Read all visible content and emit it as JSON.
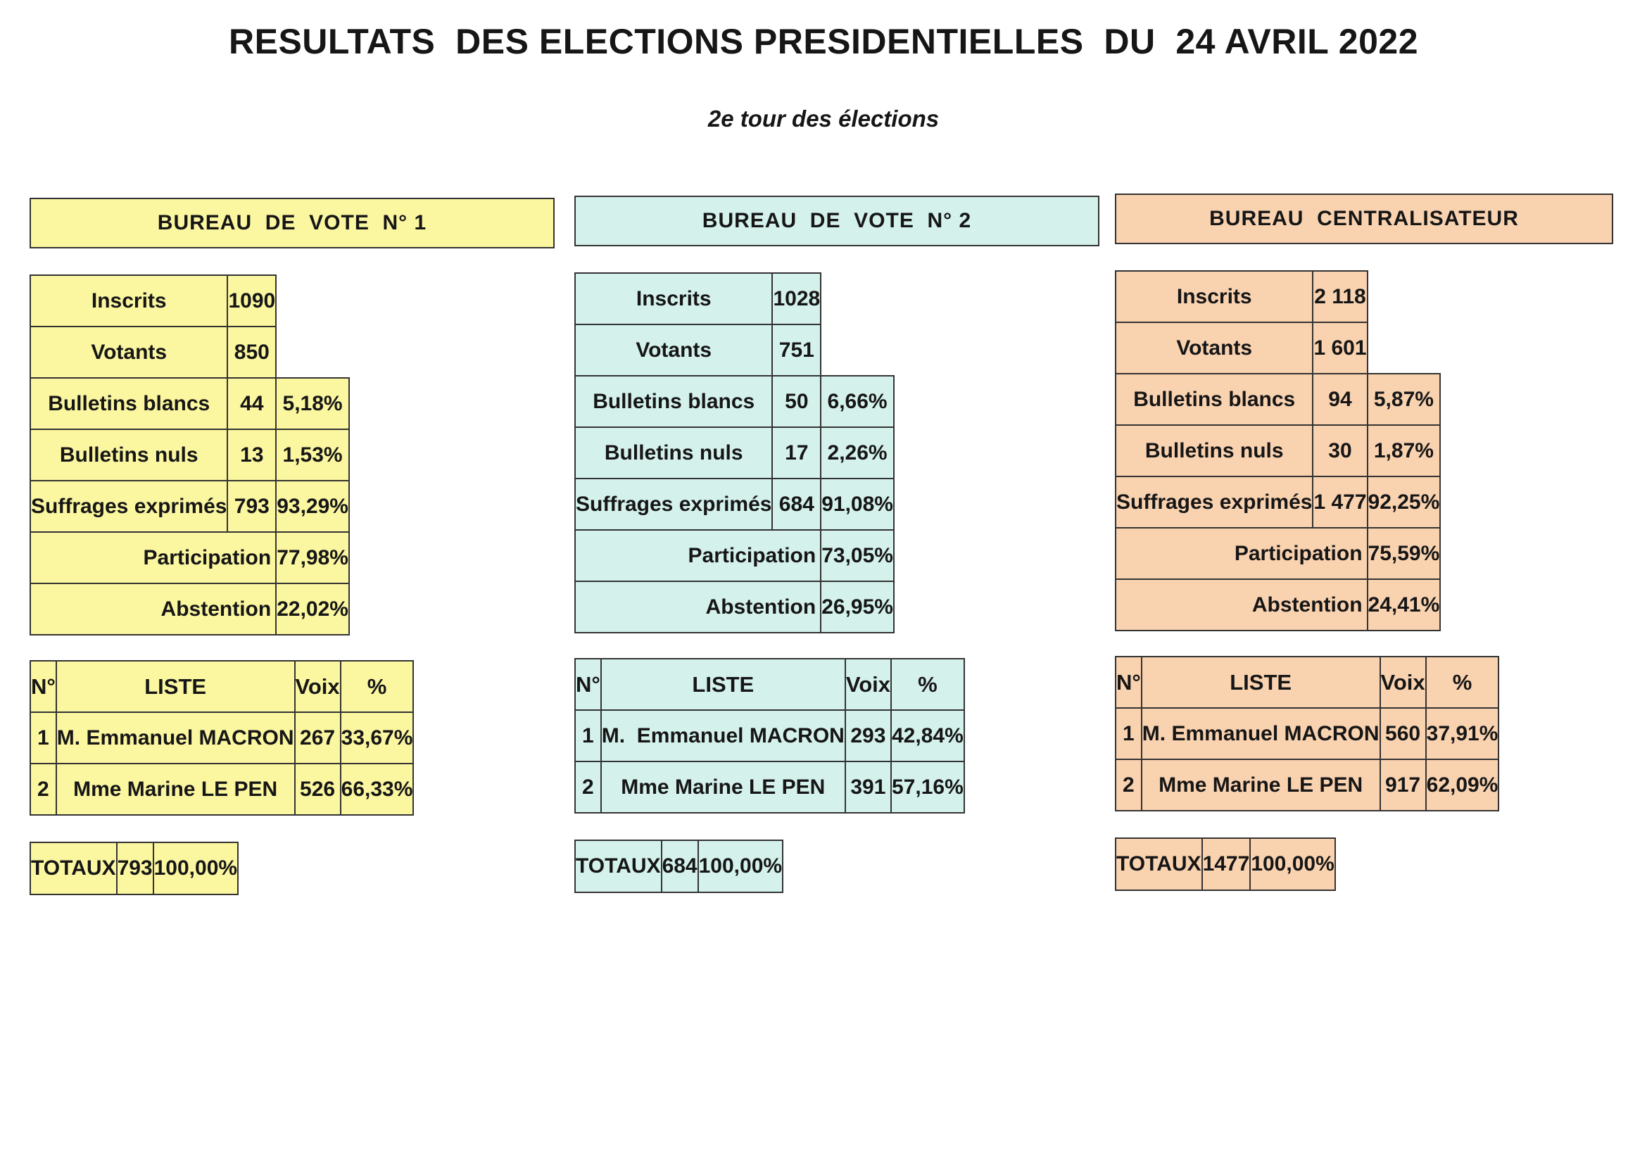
{
  "title": "RESULTATS  DES ELECTIONS PRESIDENTIELLES  DU  24 AVRIL 2022",
  "subtitle": "2e tour des élections",
  "labels": {
    "inscrits": "Inscrits",
    "votants": "Votants",
    "blancs": "Bulletins blancs",
    "nuls": "Bulletins nuls",
    "exprimes": "Suffrages exprimés",
    "participation": "Participation",
    "abstention": "Abstention",
    "num": "N°",
    "liste": "LISTE",
    "voix": "Voix",
    "pct": "%",
    "totaux": "TOTAUX"
  },
  "bureaus": [
    {
      "header": "BUREAU  DE  VOTE  N° 1",
      "color": "#fbf6a0",
      "inscrits": "1090",
      "votants": "850",
      "blancs": "44",
      "blancs_pct": "5,18%",
      "nuls": "13",
      "nuls_pct": "1,53%",
      "exprimes": "793",
      "exprimes_pct": "93,29%",
      "participation": "77,98%",
      "abstention": "22,02%",
      "candidates": [
        {
          "n": "1",
          "name": "M. Emmanuel MACRON",
          "voix": "267",
          "pct": "33,67%"
        },
        {
          "n": "2",
          "name": "Mme Marine LE PEN",
          "voix": "526",
          "pct": "66,33%"
        }
      ],
      "total_voix": "793",
      "total_pct": "100,00%"
    },
    {
      "header": "BUREAU  DE  VOTE  N° 2",
      "color": "#d4f1ec",
      "inscrits": "1028",
      "votants": "751",
      "blancs": "50",
      "blancs_pct": "6,66%",
      "nuls": "17",
      "nuls_pct": "2,26%",
      "exprimes": "684",
      "exprimes_pct": "91,08%",
      "participation": "73,05%",
      "abstention": "26,95%",
      "candidates": [
        {
          "n": "1",
          "name": "M.  Emmanuel MACRON",
          "voix": "293",
          "pct": "42,84%"
        },
        {
          "n": "2",
          "name": "Mme Marine LE PEN",
          "voix": "391",
          "pct": "57,16%"
        }
      ],
      "total_voix": "684",
      "total_pct": "100,00%"
    },
    {
      "header": "BUREAU  CENTRALISATEUR",
      "color": "#f9d2b0",
      "inscrits": "2 118",
      "votants": "1 601",
      "blancs": "94",
      "blancs_pct": "5,87%",
      "nuls": "30",
      "nuls_pct": "1,87%",
      "exprimes": "1 477",
      "exprimes_pct": "92,25%",
      "participation": "75,59%",
      "abstention": "24,41%",
      "candidates": [
        {
          "n": "1",
          "name": "M. Emmanuel MACRON",
          "voix": "560",
          "pct": "37,91%"
        },
        {
          "n": "2",
          "name": "Mme Marine LE PEN",
          "voix": "917",
          "pct": "62,09%"
        }
      ],
      "total_voix": "1477",
      "total_pct": "100,00%"
    }
  ]
}
